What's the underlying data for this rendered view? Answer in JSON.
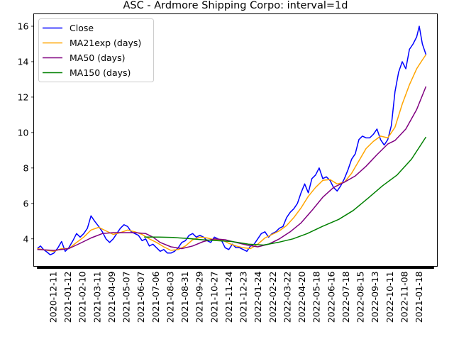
{
  "chart_data": {
    "type": "line",
    "title": "ASC - Ardmore Shipping Corpo: interval=1d",
    "xlabel": "",
    "ylabel": "",
    "ylim": [
      2.45,
      16.7
    ],
    "yticks": [
      4,
      6,
      8,
      10,
      12,
      14,
      16
    ],
    "grid": false,
    "legend_position": "top-left",
    "x_date_range": [
      "2020-12-04",
      "2023-01-25"
    ],
    "xticks": [
      "2020-12-11",
      "2021-01-12",
      "2021-02-10",
      "2021-03-11",
      "2021-04-09",
      "2021-05-07",
      "2021-06-07",
      "2021-07-06",
      "2021-08-03",
      "2021-08-31",
      "2021-09-29",
      "2021-10-27",
      "2021-11-24",
      "2021-12-23",
      "2022-01-24",
      "2022-02-22",
      "2022-03-22",
      "2022-04-20",
      "2022-05-18",
      "2022-06-16",
      "2022-07-18",
      "2022-08-15",
      "2022-09-13",
      "2022-10-11",
      "2022-11-08",
      "2021-01-18"
    ],
    "series": [
      {
        "name": "Close",
        "color": "#0000ff",
        "points": [
          [
            "2020-12-11",
            3.45
          ],
          [
            "2020-12-17",
            3.6
          ],
          [
            "2020-12-23",
            3.4
          ],
          [
            "2020-12-30",
            3.25
          ],
          [
            "2021-01-05",
            3.1
          ],
          [
            "2021-01-12",
            3.2
          ],
          [
            "2021-01-20",
            3.5
          ],
          [
            "2021-01-27",
            3.85
          ],
          [
            "2021-02-03",
            3.3
          ],
          [
            "2021-02-10",
            3.5
          ],
          [
            "2021-02-18",
            3.9
          ],
          [
            "2021-02-25",
            4.3
          ],
          [
            "2021-03-04",
            4.1
          ],
          [
            "2021-03-11",
            4.3
          ],
          [
            "2021-03-18",
            4.6
          ],
          [
            "2021-03-25",
            5.3
          ],
          [
            "2021-04-01",
            5.0
          ],
          [
            "2021-04-09",
            4.7
          ],
          [
            "2021-04-16",
            4.4
          ],
          [
            "2021-04-23",
            4.0
          ],
          [
            "2021-04-30",
            3.8
          ],
          [
            "2021-05-07",
            4.0
          ],
          [
            "2021-05-14",
            4.3
          ],
          [
            "2021-05-21",
            4.6
          ],
          [
            "2021-05-28",
            4.8
          ],
          [
            "2021-06-04",
            4.7
          ],
          [
            "2021-06-11",
            4.4
          ],
          [
            "2021-06-18",
            4.3
          ],
          [
            "2021-06-25",
            4.2
          ],
          [
            "2021-07-02",
            3.9
          ],
          [
            "2021-07-09",
            4.0
          ],
          [
            "2021-07-16",
            3.6
          ],
          [
            "2021-07-23",
            3.7
          ],
          [
            "2021-07-30",
            3.5
          ],
          [
            "2021-08-06",
            3.3
          ],
          [
            "2021-08-13",
            3.4
          ],
          [
            "2021-08-20",
            3.2
          ],
          [
            "2021-08-27",
            3.2
          ],
          [
            "2021-09-03",
            3.3
          ],
          [
            "2021-09-10",
            3.5
          ],
          [
            "2021-09-17",
            3.8
          ],
          [
            "2021-09-24",
            3.9
          ],
          [
            "2021-10-01",
            4.2
          ],
          [
            "2021-10-08",
            4.3
          ],
          [
            "2021-10-15",
            4.1
          ],
          [
            "2021-10-22",
            4.2
          ],
          [
            "2021-10-29",
            4.1
          ],
          [
            "2021-11-05",
            3.9
          ],
          [
            "2021-11-12",
            3.8
          ],
          [
            "2021-11-19",
            4.1
          ],
          [
            "2021-11-26",
            4.0
          ],
          [
            "2021-12-03",
            3.9
          ],
          [
            "2021-12-10",
            3.5
          ],
          [
            "2021-12-17",
            3.4
          ],
          [
            "2021-12-24",
            3.7
          ],
          [
            "2021-12-31",
            3.5
          ],
          [
            "2022-01-07",
            3.5
          ],
          [
            "2022-01-14",
            3.4
          ],
          [
            "2022-01-21",
            3.3
          ],
          [
            "2022-01-28",
            3.6
          ],
          [
            "2022-02-04",
            3.7
          ],
          [
            "2022-02-11",
            4.0
          ],
          [
            "2022-02-18",
            4.3
          ],
          [
            "2022-02-25",
            4.4
          ],
          [
            "2022-03-04",
            4.1
          ],
          [
            "2022-03-11",
            4.3
          ],
          [
            "2022-03-18",
            4.4
          ],
          [
            "2022-03-25",
            4.6
          ],
          [
            "2022-04-01",
            4.7
          ],
          [
            "2022-04-08",
            5.2
          ],
          [
            "2022-04-15",
            5.5
          ],
          [
            "2022-04-22",
            5.7
          ],
          [
            "2022-04-29",
            6.0
          ],
          [
            "2022-05-06",
            6.6
          ],
          [
            "2022-05-13",
            7.1
          ],
          [
            "2022-05-20",
            6.6
          ],
          [
            "2022-05-27",
            7.4
          ],
          [
            "2022-06-03",
            7.6
          ],
          [
            "2022-06-10",
            8.0
          ],
          [
            "2022-06-17",
            7.4
          ],
          [
            "2022-06-24",
            7.5
          ],
          [
            "2022-07-01",
            7.3
          ],
          [
            "2022-07-08",
            6.9
          ],
          [
            "2022-07-15",
            6.7
          ],
          [
            "2022-07-22",
            7.0
          ],
          [
            "2022-07-29",
            7.4
          ],
          [
            "2022-08-05",
            7.9
          ],
          [
            "2022-08-12",
            8.5
          ],
          [
            "2022-08-19",
            8.8
          ],
          [
            "2022-08-26",
            9.6
          ],
          [
            "2022-09-02",
            9.8
          ],
          [
            "2022-09-09",
            9.7
          ],
          [
            "2022-09-16",
            9.7
          ],
          [
            "2022-09-23",
            9.9
          ],
          [
            "2022-09-30",
            10.2
          ],
          [
            "2022-10-07",
            9.6
          ],
          [
            "2022-10-14",
            9.3
          ],
          [
            "2022-10-21",
            9.6
          ],
          [
            "2022-10-28",
            10.4
          ],
          [
            "2022-11-04",
            12.3
          ],
          [
            "2022-11-11",
            13.4
          ],
          [
            "2022-11-18",
            14.0
          ],
          [
            "2022-11-25",
            13.6
          ],
          [
            "2022-12-02",
            14.7
          ],
          [
            "2022-12-09",
            15.0
          ],
          [
            "2022-12-16",
            15.4
          ],
          [
            "2022-12-21",
            16.0
          ],
          [
            "2022-12-27",
            15.0
          ],
          [
            "2023-01-03",
            14.4
          ]
        ]
      },
      {
        "name": "MA21exp (days)",
        "color": "#ffa500",
        "points": [
          [
            "2020-12-11",
            3.45
          ],
          [
            "2020-12-30",
            3.35
          ],
          [
            "2021-01-12",
            3.3
          ],
          [
            "2021-01-27",
            3.45
          ],
          [
            "2021-02-10",
            3.45
          ],
          [
            "2021-02-25",
            3.8
          ],
          [
            "2021-03-11",
            4.1
          ],
          [
            "2021-03-25",
            4.5
          ],
          [
            "2021-04-09",
            4.65
          ],
          [
            "2021-04-23",
            4.45
          ],
          [
            "2021-05-07",
            4.25
          ],
          [
            "2021-05-21",
            4.35
          ],
          [
            "2021-06-04",
            4.5
          ],
          [
            "2021-06-18",
            4.4
          ],
          [
            "2021-07-02",
            4.25
          ],
          [
            "2021-07-16",
            4.0
          ],
          [
            "2021-07-30",
            3.8
          ],
          [
            "2021-08-13",
            3.55
          ],
          [
            "2021-08-27",
            3.35
          ],
          [
            "2021-09-10",
            3.4
          ],
          [
            "2021-09-24",
            3.6
          ],
          [
            "2021-10-08",
            3.95
          ],
          [
            "2021-10-22",
            4.1
          ],
          [
            "2021-11-05",
            4.05
          ],
          [
            "2021-11-19",
            3.95
          ],
          [
            "2021-12-03",
            3.95
          ],
          [
            "2021-12-17",
            3.75
          ],
          [
            "2021-12-31",
            3.6
          ],
          [
            "2022-01-14",
            3.5
          ],
          [
            "2022-01-28",
            3.45
          ],
          [
            "2022-02-11",
            3.7
          ],
          [
            "2022-02-25",
            4.05
          ],
          [
            "2022-03-11",
            4.25
          ],
          [
            "2022-03-25",
            4.45
          ],
          [
            "2022-04-08",
            4.75
          ],
          [
            "2022-04-22",
            5.2
          ],
          [
            "2022-05-06",
            5.75
          ],
          [
            "2022-05-20",
            6.4
          ],
          [
            "2022-06-03",
            6.9
          ],
          [
            "2022-06-17",
            7.3
          ],
          [
            "2022-07-01",
            7.35
          ],
          [
            "2022-07-15",
            7.1
          ],
          [
            "2022-07-29",
            7.2
          ],
          [
            "2022-08-12",
            7.7
          ],
          [
            "2022-08-26",
            8.4
          ],
          [
            "2022-09-09",
            9.1
          ],
          [
            "2022-09-23",
            9.5
          ],
          [
            "2022-10-07",
            9.8
          ],
          [
            "2022-10-21",
            9.7
          ],
          [
            "2022-11-04",
            10.3
          ],
          [
            "2022-11-18",
            11.6
          ],
          [
            "2022-12-02",
            12.7
          ],
          [
            "2022-12-16",
            13.6
          ],
          [
            "2022-12-27",
            14.1
          ],
          [
            "2023-01-03",
            14.4
          ]
        ]
      },
      {
        "name": "MA50 (days)",
        "color": "#800080",
        "points": [
          [
            "2020-12-11",
            3.4
          ],
          [
            "2021-01-12",
            3.35
          ],
          [
            "2021-02-10",
            3.45
          ],
          [
            "2021-03-04",
            3.75
          ],
          [
            "2021-03-25",
            4.05
          ],
          [
            "2021-04-16",
            4.3
          ],
          [
            "2021-05-07",
            4.35
          ],
          [
            "2021-05-28",
            4.35
          ],
          [
            "2021-06-18",
            4.35
          ],
          [
            "2021-07-09",
            4.3
          ],
          [
            "2021-07-23",
            4.1
          ],
          [
            "2021-08-06",
            3.8
          ],
          [
            "2021-08-27",
            3.55
          ],
          [
            "2021-09-17",
            3.45
          ],
          [
            "2021-10-08",
            3.6
          ],
          [
            "2021-10-29",
            3.85
          ],
          [
            "2021-11-19",
            4.0
          ],
          [
            "2021-12-10",
            3.95
          ],
          [
            "2021-12-31",
            3.8
          ],
          [
            "2022-01-21",
            3.65
          ],
          [
            "2022-02-11",
            3.55
          ],
          [
            "2022-03-04",
            3.7
          ],
          [
            "2022-03-25",
            4.0
          ],
          [
            "2022-04-15",
            4.4
          ],
          [
            "2022-05-06",
            4.9
          ],
          [
            "2022-05-27",
            5.6
          ],
          [
            "2022-06-17",
            6.35
          ],
          [
            "2022-07-08",
            6.9
          ],
          [
            "2022-07-29",
            7.2
          ],
          [
            "2022-08-19",
            7.55
          ],
          [
            "2022-09-09",
            8.1
          ],
          [
            "2022-09-30",
            8.75
          ],
          [
            "2022-10-21",
            9.35
          ],
          [
            "2022-11-04",
            9.55
          ],
          [
            "2022-11-25",
            10.2
          ],
          [
            "2022-12-16",
            11.3
          ],
          [
            "2023-01-03",
            12.6
          ]
        ]
      },
      {
        "name": "MA150 (days)",
        "color": "#008000",
        "points": [
          [
            "2021-07-06",
            4.1
          ],
          [
            "2021-08-03",
            4.1
          ],
          [
            "2021-08-31",
            4.08
          ],
          [
            "2021-09-29",
            4.02
          ],
          [
            "2021-10-27",
            3.95
          ],
          [
            "2021-11-24",
            3.9
          ],
          [
            "2021-12-23",
            3.85
          ],
          [
            "2022-01-24",
            3.7
          ],
          [
            "2022-02-22",
            3.65
          ],
          [
            "2022-03-22",
            3.8
          ],
          [
            "2022-04-20",
            4.0
          ],
          [
            "2022-05-18",
            4.3
          ],
          [
            "2022-06-16",
            4.7
          ],
          [
            "2022-07-18",
            5.1
          ],
          [
            "2022-08-15",
            5.6
          ],
          [
            "2022-09-13",
            6.3
          ],
          [
            "2022-10-11",
            7.0
          ],
          [
            "2022-11-08",
            7.6
          ],
          [
            "2022-12-06",
            8.5
          ],
          [
            "2023-01-03",
            9.75
          ]
        ]
      }
    ]
  }
}
